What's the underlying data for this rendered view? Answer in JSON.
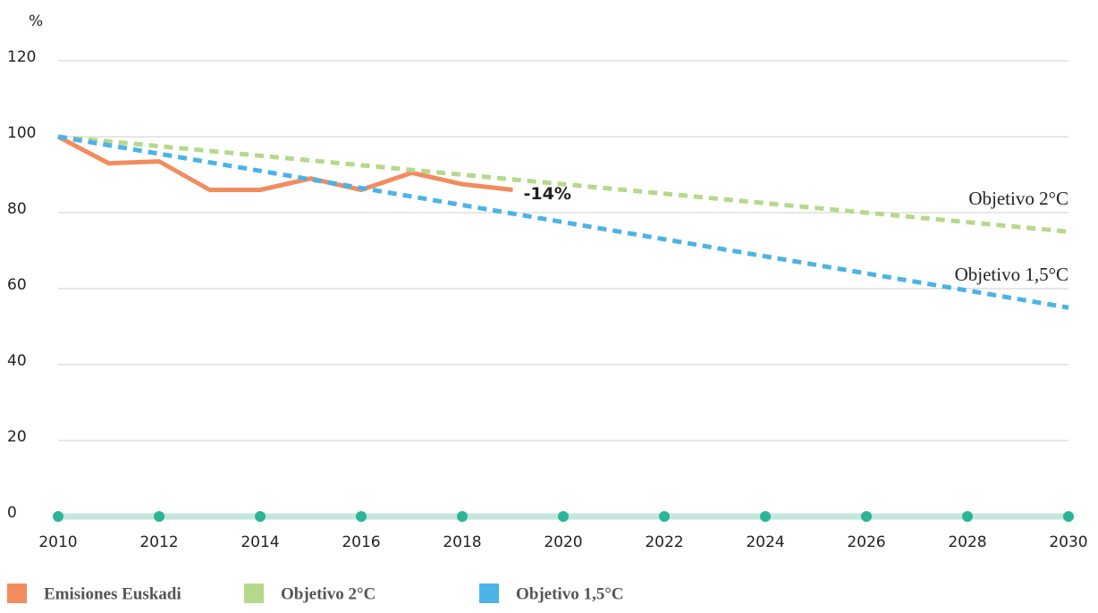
{
  "chart_data": {
    "type": "line",
    "y_label": "%",
    "xlim": [
      2010,
      2030
    ],
    "xticks": [
      2010,
      2012,
      2014,
      2016,
      2018,
      2020,
      2022,
      2024,
      2026,
      2028,
      2030
    ],
    "ylim": [
      0,
      120
    ],
    "yticks": [
      0,
      20,
      40,
      60,
      80,
      100,
      120
    ],
    "grid": true,
    "series": [
      {
        "name": "Emisiones Euskadi",
        "color": "#f28c5e",
        "style": "solid",
        "x": [
          2010,
          2011,
          2012,
          2013,
          2014,
          2015,
          2016,
          2017,
          2018,
          2019
        ],
        "values": [
          100,
          93,
          93.5,
          86,
          86,
          89,
          86,
          90.5,
          87.5,
          86
        ],
        "end_label": "-14%"
      },
      {
        "name": "Objetivo 2°C",
        "color": "#b5d98b",
        "style": "dashed",
        "x": [
          2010,
          2030
        ],
        "values": [
          100,
          75
        ]
      },
      {
        "name": "Objetivo 1,5°C",
        "color": "#4cb3e6",
        "style": "dashed",
        "x": [
          2010,
          2030
        ],
        "values": [
          100,
          55
        ]
      }
    ]
  }
}
